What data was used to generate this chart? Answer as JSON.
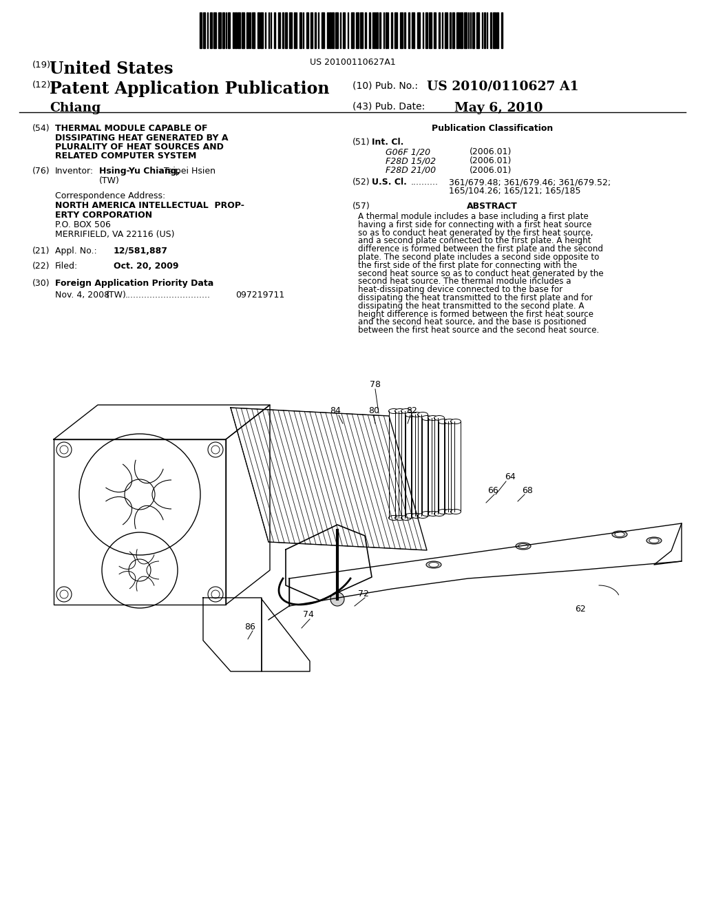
{
  "bg_color": "#ffffff",
  "barcode_text": "US 20100110627A1",
  "header": {
    "country_label": "(19)",
    "country": "United States",
    "type_label": "(12)",
    "type": "Patent Application Publication",
    "pub_no_label": "(10) Pub. No.:",
    "pub_no": "US 2010/0110627 A1",
    "name": "Chiang",
    "date_label": "(43) Pub. Date:",
    "date": "May 6, 2010"
  },
  "left_col": {
    "title_num": "(54)",
    "title": "THERMAL MODULE CAPABLE OF\nDISSIPATING HEAT GENERATED BY A\nPLURALITY OF HEAT SOURCES AND\nRELATED COMPUTER SYSTEM",
    "inventor_num": "(76)",
    "inventor_label": "Inventor:",
    "inventor_name": "Hsing-Yu Chiang,",
    "inventor_city": "Taipei Hsien",
    "inventor_country": "(TW)",
    "corr_label": "Correspondence Address:",
    "corr_line1": "NORTH AMERICA INTELLECTUAL  PROP-",
    "corr_line2": "ERTY CORPORATION",
    "corr_line3": "P.O. BOX 506",
    "corr_line4": "MERRIFIELD, VA 22116 (US)",
    "appl_num": "(21)",
    "appl_label": "Appl. No.:",
    "appl_val": "12/581,887",
    "filed_num": "(22)",
    "filed_label": "Filed:",
    "filed_val": "Oct. 20, 2009",
    "foreign_num": "(30)",
    "foreign_label": "Foreign Application Priority Data",
    "foreign_date": "Nov. 4, 2008",
    "foreign_country": "(TW)",
    "foreign_dots": "...............................",
    "foreign_appno": "097219711"
  },
  "right_col": {
    "pub_class_title": "Publication Classification",
    "int_cl_num": "(51)",
    "int_cl_label": "Int. Cl.",
    "int_cl_entries": [
      [
        "G06F 1/20",
        "(2006.01)"
      ],
      [
        "F28D 15/02",
        "(2006.01)"
      ],
      [
        "F28D 21/00",
        "(2006.01)"
      ]
    ],
    "us_cl_num": "(52)",
    "us_cl_label": "U.S. Cl.",
    "us_cl_dots": "..........",
    "us_cl_val1": "361/679.48; 361/679.46; 361/679.52;",
    "us_cl_val2": "165/104.26; 165/121; 165/185",
    "abstract_num": "(57)",
    "abstract_title": "ABSTRACT",
    "abstract_text": "A thermal module includes a base including a first plate having a first side for connecting with a first heat source so as to conduct heat generated by the first heat source, and a second plate connected to the first plate. A height difference is formed between the first plate and the second plate. The second plate includes a second side opposite to the first side of the first plate for connecting with the second heat source so as to conduct heat generated by the second heat source. The thermal module includes a heat-dissipating device connected to the base for dissipating the heat transmitted to the first plate and for dissipating the heat transmitted to the second plate. A height difference is formed between the first heat source and the second heat source, and the base is positioned between the first heat source and the second heat source."
  }
}
